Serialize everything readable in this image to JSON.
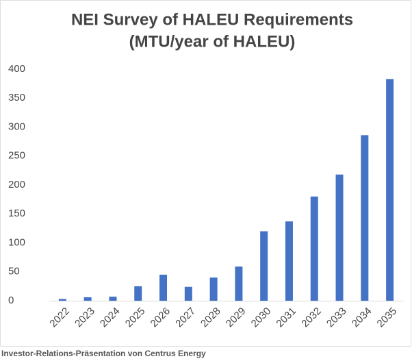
{
  "chart_data": {
    "type": "bar",
    "title": [
      "NEI Survey of HALEU Requirements",
      "(MTU/year of HALEU)"
    ],
    "categories": [
      "2022",
      "2023",
      "2024",
      "2025",
      "2026",
      "2027",
      "2028",
      "2029",
      "2030",
      "2031",
      "2032",
      "2033",
      "2034",
      "2035"
    ],
    "values": [
      3,
      6,
      7,
      25,
      45,
      24,
      40,
      59,
      120,
      137,
      180,
      218,
      286,
      383
    ],
    "color": "#4472c4",
    "ylim": [
      0,
      400
    ],
    "yticks": [
      0,
      50,
      100,
      150,
      200,
      250,
      300,
      350,
      400
    ],
    "grid": false
  },
  "caption": "Investor-Relations-Präsentation von Centrus Energy"
}
